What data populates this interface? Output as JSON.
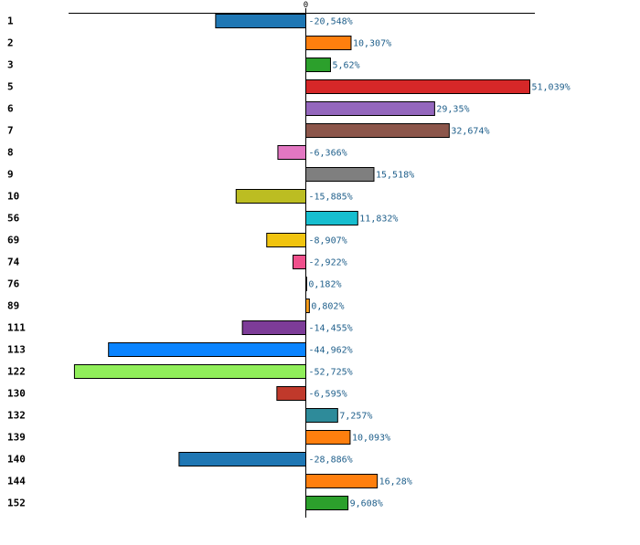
{
  "chart_data": {
    "type": "bar",
    "orientation": "horizontal",
    "title": "",
    "xlabel": "",
    "ylabel": "",
    "xlim": [
      -52.725,
      51.039
    ],
    "zero_tick_label": "0",
    "grid": false,
    "legend": "none",
    "categories": [
      "1",
      "2",
      "3",
      "5",
      "6",
      "7",
      "8",
      "9",
      "10",
      "56",
      "69",
      "74",
      "76",
      "89",
      "111",
      "113",
      "122",
      "130",
      "132",
      "139",
      "140",
      "144",
      "152"
    ],
    "values": [
      -20.548,
      10.307,
      5.62,
      51.039,
      29.35,
      32.674,
      -6.366,
      15.518,
      -15.885,
      11.832,
      -8.907,
      -2.922,
      0.182,
      0.802,
      -14.455,
      -44.962,
      -52.725,
      -6.595,
      7.257,
      10.093,
      -28.886,
      16.28,
      9.608
    ],
    "value_labels": [
      "-20,548%",
      "10,307%",
      "5,62%",
      "51,039%",
      "29,35%",
      "32,674%",
      "-6,366%",
      "15,518%",
      "-15,885%",
      "11,832%",
      "-8,907%",
      "-2,922%",
      "0,182%",
      "0,802%",
      "-14,455%",
      "-44,962%",
      "-52,725%",
      "-6,595%",
      "7,257%",
      "10,093%",
      "-28,886%",
      "16,28%",
      "9,608%"
    ],
    "colors": [
      "#1f77b4",
      "#ff7f0e",
      "#2ca02c",
      "#d62728",
      "#9467bd",
      "#8c564b",
      "#e377c2",
      "#7f7f7f",
      "#bcbd22",
      "#17becf",
      "#f1c40f",
      "#f0508c",
      "#1f77b4",
      "#ff9f1a",
      "#7d3c98",
      "#0a84ff",
      "#90ee5a",
      "#c0392b",
      "#2e8b9a",
      "#ff7f0e",
      "#1f77b4",
      "#ff7f0e",
      "#2ca02c"
    ],
    "value_label_color": "#1f5f8b"
  }
}
